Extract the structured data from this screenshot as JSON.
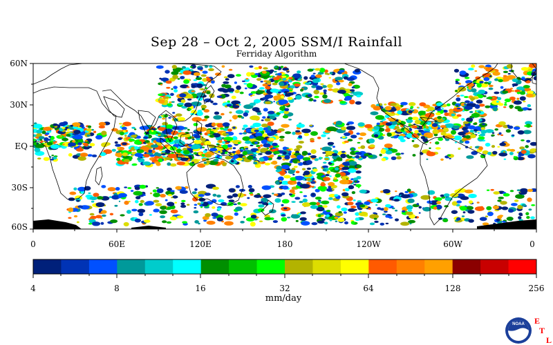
{
  "title": "Sep 28 – Oct 2, 2005 SSM/I Rainfall",
  "subtitle": "Ferriday Algorithm",
  "lat_labels": [
    "60N",
    "30N",
    "EQ",
    "30S",
    "60S"
  ],
  "lon_labels": [
    "0",
    "60E",
    "120E",
    "180",
    "120W",
    "60W",
    "0"
  ],
  "colorbar": {
    "ticks": [
      "4",
      "8",
      "16",
      "32",
      "64",
      "128",
      "256"
    ],
    "units": "mm/day",
    "colors": [
      "#00207a",
      "#0033b5",
      "#0050ff",
      "#00999a",
      "#00cccc",
      "#00ffff",
      "#008f00",
      "#00c000",
      "#00ff00",
      "#b3b300",
      "#dddd00",
      "#ffff00",
      "#ff5a00",
      "#ff8000",
      "#ffa000",
      "#8b0000",
      "#c80000",
      "#ff0000"
    ]
  },
  "logo": {
    "text": "NOAA",
    "letters": [
      "E",
      "T",
      "L"
    ]
  }
}
